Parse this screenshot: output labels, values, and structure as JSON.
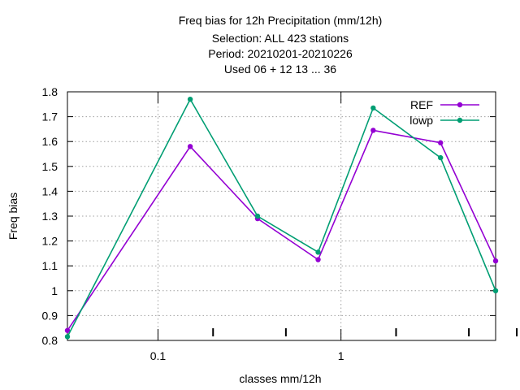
{
  "chart_data": {
    "type": "line",
    "title_lines": [
      "Freq bias  for 12h Precipitation (mm/12h)",
      "Selection: ALL    423 stations",
      "Period: 20210201-20210226",
      "Used  06  + 12 13 ... 36"
    ],
    "xlabel": "classes mm/12h",
    "ylabel": "Freq bias",
    "x_scale": "log",
    "xlim": [
      0.032,
      7.0
    ],
    "ylim": [
      0.8,
      1.8
    ],
    "y_ticks": [
      0.8,
      0.9,
      1.0,
      1.1,
      1.2,
      1.3,
      1.4,
      1.5,
      1.6,
      1.7,
      1.8
    ],
    "y_tick_labels": [
      "0.8",
      "0.9",
      "1",
      "1.1",
      "1.2",
      "1.3",
      "1.4",
      "1.5",
      "1.6",
      "1.7",
      "1.8"
    ],
    "x_tick_labels": [
      {
        "value": 0.1,
        "label": "0.1"
      },
      {
        "value": 1,
        "label": "1"
      }
    ],
    "x_minor_ticks": [
      0.2,
      0.5,
      2,
      5
    ],
    "grid": true,
    "legend_position": "top-right",
    "x": [
      0.032,
      0.15,
      0.35,
      0.75,
      1.5,
      3.5,
      7.0
    ],
    "series": [
      {
        "name": "REF",
        "color": "#9400d3",
        "values": [
          0.84,
          1.58,
          1.29,
          1.125,
          1.645,
          1.595,
          1.12
        ]
      },
      {
        "name": "lowp",
        "color": "#009e73",
        "values": [
          0.815,
          1.77,
          1.3,
          1.155,
          1.735,
          1.535,
          1.0
        ]
      }
    ]
  }
}
